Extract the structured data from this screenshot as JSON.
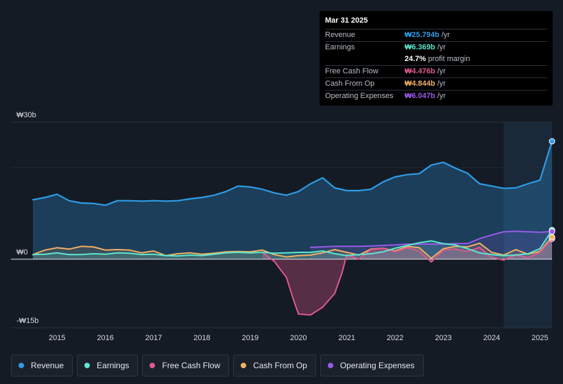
{
  "tooltip": {
    "date": "Mar 31 2025",
    "rows": [
      {
        "label": "Revenue",
        "value": "₩25.794b",
        "unit": "/yr",
        "color": "#2e9ce6"
      },
      {
        "label": "Earnings",
        "value": "₩6.369b",
        "unit": "/yr",
        "color": "#5ee6cf"
      },
      {
        "label": "",
        "value": "24.7%",
        "unit": "profit margin",
        "color": "#ffffff"
      },
      {
        "label": "Free Cash Flow",
        "value": "₩4.476b",
        "unit": "/yr",
        "color": "#e0588f"
      },
      {
        "label": "Cash From Op",
        "value": "₩4.844b",
        "unit": "/yr",
        "color": "#f2b162"
      },
      {
        "label": "Operating Expenses",
        "value": "₩6.047b",
        "unit": "/yr",
        "color": "#9a5ae8"
      }
    ]
  },
  "legend": [
    {
      "label": "Revenue",
      "color": "#2e9ce6"
    },
    {
      "label": "Earnings",
      "color": "#5ee6cf"
    },
    {
      "label": "Free Cash Flow",
      "color": "#e0588f"
    },
    {
      "label": "Cash From Op",
      "color": "#f2b162"
    },
    {
      "label": "Operating Expenses",
      "color": "#9a5ae8"
    }
  ],
  "chart_data": {
    "type": "area",
    "title": "",
    "units": "₩ billions",
    "ylim": [
      -15,
      30
    ],
    "y_tick_labels": [
      {
        "value": 30,
        "label": "₩30b"
      },
      {
        "value": 0,
        "label": "₩0"
      },
      {
        "value": -15,
        "label": "-₩15b"
      }
    ],
    "xlim": [
      2014.5,
      2025.25
    ],
    "x_ticks": [
      {
        "value": 2015,
        "label": "2015"
      },
      {
        "value": 2016,
        "label": "2016"
      },
      {
        "value": 2017,
        "label": "2017"
      },
      {
        "value": 2018,
        "label": "2018"
      },
      {
        "value": 2019,
        "label": "2019"
      },
      {
        "value": 2020,
        "label": "2020"
      },
      {
        "value": 2021,
        "label": "2021"
      },
      {
        "value": 2022,
        "label": "2022"
      },
      {
        "value": 2023,
        "label": "2023"
      },
      {
        "value": 2024,
        "label": "2024"
      },
      {
        "value": 2025,
        "label": "2025"
      }
    ],
    "highlight_start": 2024.25,
    "series": [
      {
        "name": "Revenue",
        "color": "#2e9ce6",
        "x": [
          2014.5,
          2014.75,
          2015.0,
          2015.25,
          2015.5,
          2015.75,
          2016.0,
          2016.25,
          2016.5,
          2016.75,
          2017.0,
          2017.25,
          2017.5,
          2017.75,
          2018.0,
          2018.25,
          2018.5,
          2018.75,
          2019.0,
          2019.25,
          2019.5,
          2019.75,
          2020.0,
          2020.25,
          2020.5,
          2020.75,
          2021.0,
          2021.25,
          2021.5,
          2021.75,
          2022.0,
          2022.25,
          2022.5,
          2022.75,
          2023.0,
          2023.25,
          2023.5,
          2023.75,
          2024.0,
          2024.25,
          2024.5,
          2024.75,
          2025.0,
          2025.25
        ],
        "values": [
          13.0,
          13.5,
          14.2,
          12.8,
          12.3,
          12.2,
          11.8,
          12.8,
          12.8,
          12.7,
          12.8,
          12.7,
          12.8,
          13.2,
          13.5,
          14.0,
          14.8,
          16.0,
          15.8,
          15.3,
          14.5,
          14.0,
          14.8,
          16.5,
          17.8,
          15.6,
          15.0,
          15.0,
          15.3,
          16.9,
          18.0,
          18.5,
          18.7,
          20.6,
          21.2,
          19.9,
          18.8,
          16.5,
          16.0,
          15.5,
          15.6,
          16.5,
          17.3,
          25.794
        ]
      },
      {
        "name": "Earnings",
        "color": "#5ee6cf",
        "x": [
          2014.5,
          2014.75,
          2015.0,
          2015.25,
          2015.5,
          2015.75,
          2016.0,
          2016.25,
          2016.5,
          2016.75,
          2017.0,
          2017.25,
          2017.5,
          2017.75,
          2018.0,
          2018.25,
          2018.5,
          2018.75,
          2019.0,
          2019.25,
          2019.5,
          2019.75,
          2020.0,
          2020.25,
          2020.5,
          2020.75,
          2021.0,
          2021.25,
          2021.5,
          2021.75,
          2022.0,
          2022.25,
          2022.5,
          2022.75,
          2023.0,
          2023.25,
          2023.5,
          2023.75,
          2024.0,
          2024.25,
          2024.5,
          2024.75,
          2025.0,
          2025.25
        ],
        "values": [
          1.0,
          1.1,
          1.4,
          1.0,
          1.0,
          1.2,
          1.1,
          1.4,
          1.3,
          1.0,
          1.1,
          0.8,
          0.7,
          0.9,
          0.8,
          1.1,
          1.4,
          1.5,
          1.4,
          1.5,
          1.3,
          1.4,
          1.5,
          1.5,
          1.8,
          1.2,
          0.8,
          1.0,
          1.2,
          1.6,
          2.4,
          3.0,
          3.6,
          4.0,
          3.4,
          3.1,
          2.3,
          1.4,
          1.0,
          0.8,
          0.9,
          1.2,
          2.3,
          6.369
        ]
      },
      {
        "name": "Free Cash Flow",
        "color": "#e0588f",
        "x": [
          2019.25,
          2019.5,
          2019.75,
          2019.9,
          2020.0,
          2020.25,
          2020.5,
          2020.75,
          2020.9,
          2021.0,
          2021.25,
          2021.5,
          2021.75,
          2022.0,
          2022.25,
          2022.5,
          2022.75,
          2023.0,
          2023.25,
          2023.5,
          2023.75,
          2024.0,
          2024.25,
          2024.5,
          2024.75,
          2025.0,
          2025.25
        ],
        "values": [
          1.5,
          -0.5,
          -4.0,
          -9.0,
          -12.0,
          -12.2,
          -10.5,
          -7.5,
          -3.0,
          1.0,
          0.0,
          2.1,
          2.4,
          1.6,
          2.5,
          1.8,
          -0.6,
          2.0,
          2.2,
          1.7,
          2.6,
          0.4,
          -0.2,
          1.0,
          0.3,
          1.5,
          4.476
        ]
      },
      {
        "name": "Cash From Op",
        "color": "#f2b162",
        "x": [
          2014.5,
          2014.75,
          2015.0,
          2015.25,
          2015.5,
          2015.75,
          2016.0,
          2016.25,
          2016.5,
          2016.75,
          2017.0,
          2017.25,
          2017.5,
          2017.75,
          2018.0,
          2018.25,
          2018.5,
          2018.75,
          2019.0,
          2019.25,
          2019.5,
          2019.75,
          2020.0,
          2020.25,
          2020.5,
          2020.75,
          2021.0,
          2021.25,
          2021.5,
          2021.75,
          2022.0,
          2022.25,
          2022.5,
          2022.75,
          2023.0,
          2023.25,
          2023.5,
          2023.75,
          2024.0,
          2024.25,
          2024.5,
          2024.75,
          2025.0,
          2025.25
        ],
        "values": [
          1.0,
          2.0,
          2.5,
          2.2,
          2.8,
          2.7,
          2.0,
          2.1,
          2.0,
          1.4,
          1.8,
          0.8,
          1.2,
          1.4,
          1.1,
          1.3,
          1.6,
          1.7,
          1.6,
          2.0,
          1.0,
          0.5,
          0.8,
          0.9,
          1.4,
          2.1,
          1.5,
          0.9,
          2.2,
          2.4,
          1.8,
          2.8,
          2.5,
          0.2,
          2.3,
          2.8,
          2.7,
          3.5,
          1.5,
          0.9,
          2.1,
          1.1,
          1.7,
          4.844
        ]
      },
      {
        "name": "Operating Expenses",
        "color": "#9a5ae8",
        "x": [
          2020.25,
          2020.5,
          2020.75,
          2021.0,
          2021.25,
          2021.5,
          2021.75,
          2022.0,
          2022.25,
          2022.5,
          2022.75,
          2023.0,
          2023.25,
          2023.5,
          2023.75,
          2024.0,
          2024.25,
          2024.5,
          2024.75,
          2025.0,
          2025.25
        ],
        "values": [
          2.6,
          2.7,
          2.8,
          2.8,
          2.8,
          2.9,
          3.0,
          3.1,
          3.3,
          3.3,
          3.3,
          3.3,
          3.4,
          3.4,
          4.5,
          5.3,
          6.0,
          6.1,
          6.0,
          5.9,
          6.047
        ]
      }
    ]
  }
}
